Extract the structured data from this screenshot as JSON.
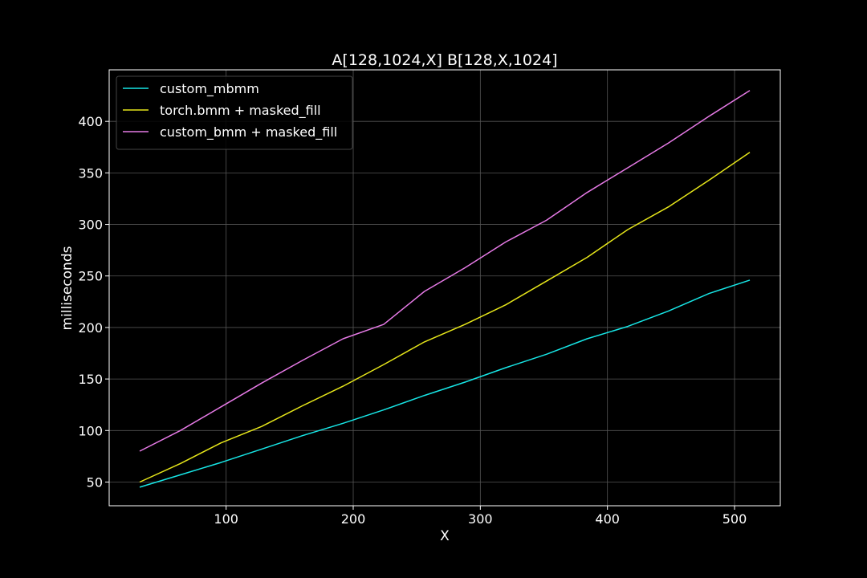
{
  "chart_data": {
    "type": "line",
    "title": "A[128,1024,X] B[128,X,1024]",
    "xlabel": "X",
    "ylabel": "milliseconds",
    "xlim": [
      8,
      536
    ],
    "ylim": [
      27,
      450
    ],
    "xticks": [
      100,
      200,
      300,
      400,
      500
    ],
    "yticks": [
      50,
      100,
      150,
      200,
      250,
      300,
      350,
      400
    ],
    "grid": true,
    "legend_position": "top-left",
    "x": [
      32,
      64,
      96,
      128,
      160,
      192,
      224,
      256,
      288,
      320,
      352,
      384,
      416,
      448,
      480,
      512
    ],
    "series": [
      {
        "name": "custom_mbmm",
        "color": "#17e6e6",
        "values": [
          45,
          57,
          69,
          82,
          95,
          107,
          120,
          134,
          147,
          161,
          174,
          189,
          201,
          216,
          233,
          246
        ]
      },
      {
        "name": "torch.bmm + masked_fill",
        "color": "#e6e61a",
        "values": [
          50,
          68,
          88,
          104,
          124,
          143,
          164,
          186,
          203,
          222,
          245,
          268,
          295,
          317,
          343,
          370
        ]
      },
      {
        "name": "custom_bmm + masked_fill",
        "color": "#e67ae6",
        "values": [
          80,
          100,
          123,
          146,
          168,
          189,
          203,
          235,
          258,
          283,
          304,
          331,
          355,
          379,
          405,
          430
        ]
      }
    ]
  }
}
